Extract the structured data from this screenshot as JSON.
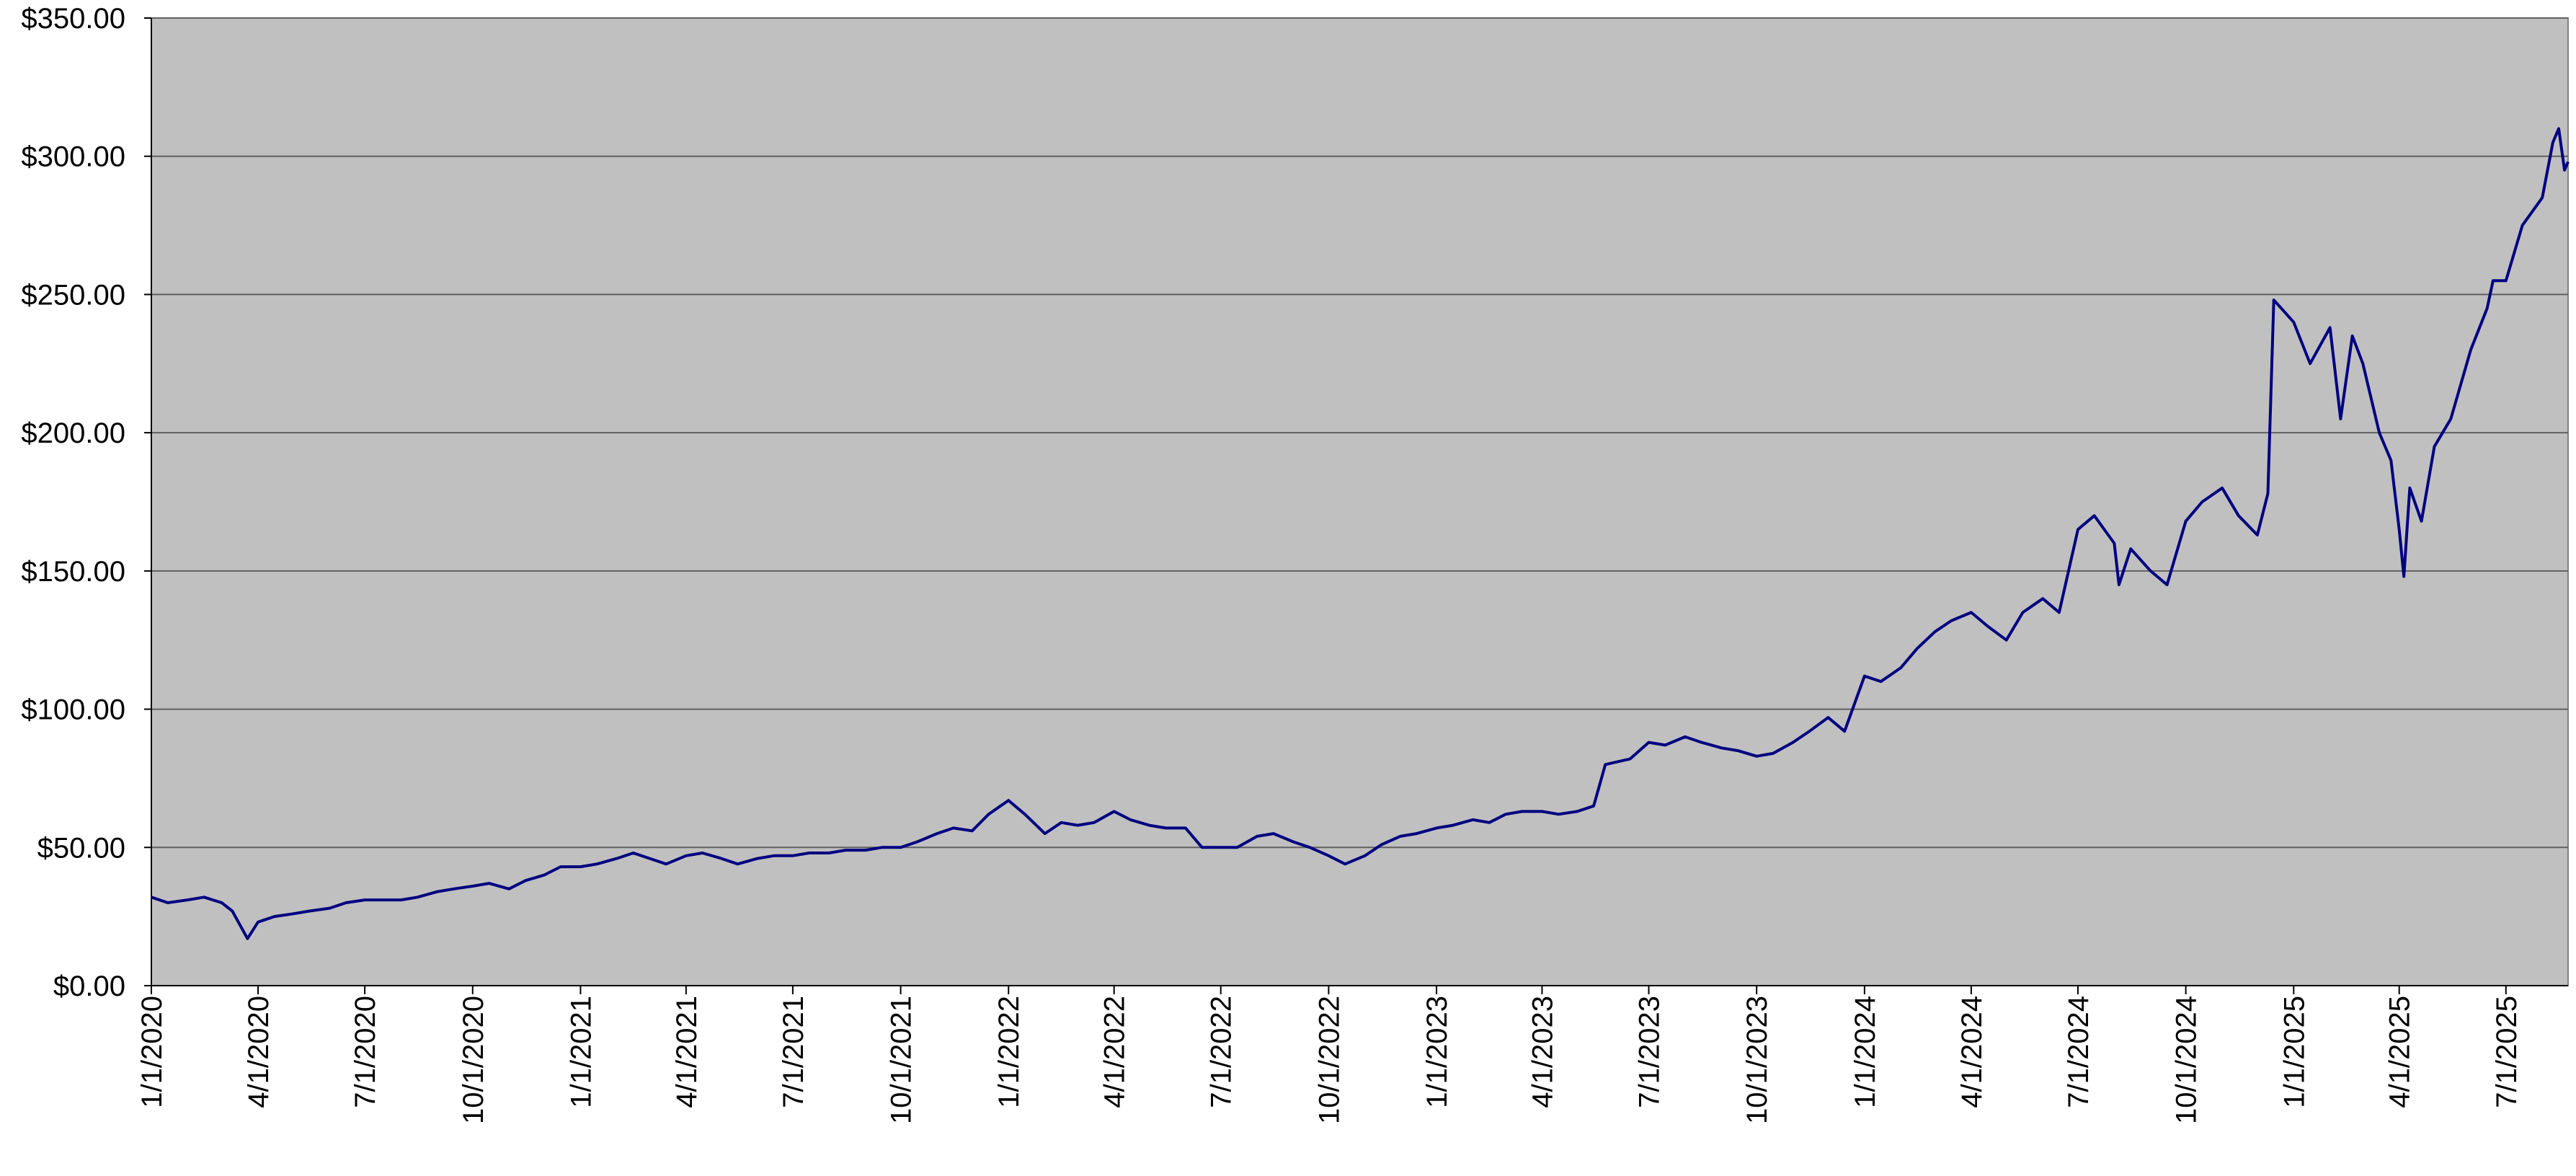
{
  "chart_data": {
    "type": "line",
    "x": [
      "1/1/2020",
      "1/15/2020",
      "2/1/2020",
      "2/15/2020",
      "3/1/2020",
      "3/10/2020",
      "3/23/2020",
      "4/1/2020",
      "4/15/2020",
      "5/1/2020",
      "5/15/2020",
      "6/1/2020",
      "6/15/2020",
      "7/1/2020",
      "7/15/2020",
      "8/1/2020",
      "8/15/2020",
      "9/1/2020",
      "9/15/2020",
      "10/1/2020",
      "10/15/2020",
      "11/1/2020",
      "11/15/2020",
      "12/1/2020",
      "12/15/2020",
      "1/1/2021",
      "1/15/2021",
      "2/1/2021",
      "2/15/2021",
      "3/1/2021",
      "3/15/2021",
      "4/1/2021",
      "4/15/2021",
      "5/1/2021",
      "5/15/2021",
      "6/1/2021",
      "6/15/2021",
      "7/1/2021",
      "7/15/2021",
      "8/1/2021",
      "8/15/2021",
      "9/1/2021",
      "9/15/2021",
      "10/1/2021",
      "10/15/2021",
      "11/1/2021",
      "11/15/2021",
      "12/1/2021",
      "12/15/2021",
      "1/1/2022",
      "1/15/2022",
      "2/1/2022",
      "2/15/2022",
      "3/1/2022",
      "3/15/2022",
      "4/1/2022",
      "4/15/2022",
      "5/1/2022",
      "5/15/2022",
      "6/1/2022",
      "6/15/2022",
      "7/1/2022",
      "7/15/2022",
      "8/1/2022",
      "8/15/2022",
      "9/1/2022",
      "9/15/2022",
      "10/1/2022",
      "10/15/2022",
      "11/1/2022",
      "11/15/2022",
      "12/1/2022",
      "12/15/2022",
      "1/1/2023",
      "1/15/2023",
      "2/1/2023",
      "2/15/2023",
      "3/1/2023",
      "3/15/2023",
      "4/1/2023",
      "4/15/2023",
      "5/1/2023",
      "5/15/2023",
      "5/25/2023",
      "6/15/2023",
      "7/1/2023",
      "7/15/2023",
      "8/1/2023",
      "8/15/2023",
      "9/1/2023",
      "9/15/2023",
      "10/1/2023",
      "10/15/2023",
      "11/1/2023",
      "11/15/2023",
      "12/1/2023",
      "12/15/2023",
      "1/1/2024",
      "1/15/2024",
      "2/1/2024",
      "2/15/2024",
      "3/1/2024",
      "3/15/2024",
      "4/1/2024",
      "4/15/2024",
      "5/1/2024",
      "5/15/2024",
      "6/1/2024",
      "6/15/2024",
      "7/1/2024",
      "7/15/2024",
      "8/1/2024",
      "8/5/2024",
      "8/15/2024",
      "9/1/2024",
      "9/15/2024",
      "10/1/2024",
      "10/15/2024",
      "11/1/2024",
      "11/15/2024",
      "12/1/2024",
      "12/10/2024",
      "12/15/2024",
      "1/1/2025",
      "1/15/2025",
      "2/1/2025",
      "2/10/2025",
      "2/20/2025",
      "3/1/2025",
      "3/15/2025",
      "3/25/2025",
      "4/1/2025",
      "4/5/2025",
      "4/10/2025",
      "4/20/2025",
      "5/1/2025",
      "5/15/2025",
      "6/1/2025",
      "6/15/2025",
      "6/20/2025",
      "7/1/2025",
      "7/15/2025",
      "8/1/2025",
      "8/10/2025",
      "8/15/2025",
      "8/20/2025",
      "8/23/2025"
    ],
    "series": [
      {
        "color": "#000080",
        "values": [
          32,
          30,
          31,
          32,
          30,
          27,
          17,
          23,
          25,
          26,
          27,
          28,
          30,
          31,
          31,
          31,
          32,
          34,
          35,
          36,
          37,
          35,
          38,
          40,
          43,
          43,
          44,
          46,
          48,
          46,
          44,
          47,
          48,
          46,
          44,
          46,
          47,
          47,
          48,
          48,
          49,
          49,
          50,
          50,
          52,
          55,
          57,
          56,
          62,
          67,
          62,
          55,
          59,
          58,
          59,
          63,
          60,
          58,
          57,
          57,
          50,
          50,
          50,
          54,
          55,
          52,
          50,
          47,
          44,
          47,
          51,
          54,
          55,
          57,
          58,
          60,
          59,
          62,
          63,
          63,
          62,
          63,
          65,
          80,
          82,
          88,
          87,
          90,
          88,
          86,
          85,
          83,
          84,
          88,
          92,
          97,
          92,
          112,
          110,
          115,
          122,
          128,
          132,
          135,
          130,
          125,
          135,
          140,
          135,
          165,
          170,
          160,
          145,
          158,
          150,
          145,
          168,
          175,
          180,
          170,
          163,
          178,
          248,
          240,
          225,
          238,
          205,
          235,
          225,
          200,
          190,
          165,
          148,
          180,
          168,
          195,
          205,
          230,
          245,
          255,
          255,
          275,
          285,
          305,
          310,
          295,
          298
        ]
      }
    ],
    "xlim": [
      "1/1/2020",
      "8/23/2025"
    ],
    "xticks": [
      "1/1/2020",
      "4/1/2020",
      "7/1/2020",
      "10/1/2020",
      "1/1/2021",
      "4/1/2021",
      "7/1/2021",
      "10/1/2021",
      "1/1/2022",
      "4/1/2022",
      "7/1/2022",
      "10/1/2022",
      "1/1/2023",
      "4/1/2023",
      "7/1/2023",
      "10/1/2023",
      "1/1/2024",
      "4/1/2024",
      "7/1/2024",
      "10/1/2024",
      "1/1/2025",
      "4/1/2025",
      "7/1/2025"
    ],
    "ylim": [
      0,
      350
    ],
    "yticks": [
      {
        "value": 0,
        "label": "$0.00"
      },
      {
        "value": 50,
        "label": "$50.00"
      },
      {
        "value": 100,
        "label": "$100.00"
      },
      {
        "value": 150,
        "label": "$150.00"
      },
      {
        "value": 200,
        "label": "$200.00"
      },
      {
        "value": 250,
        "label": "$250.00"
      },
      {
        "value": 300,
        "label": "$300.00"
      },
      {
        "value": 350,
        "label": "$350.00"
      }
    ],
    "grid": true,
    "background": "#c0c0c0"
  }
}
